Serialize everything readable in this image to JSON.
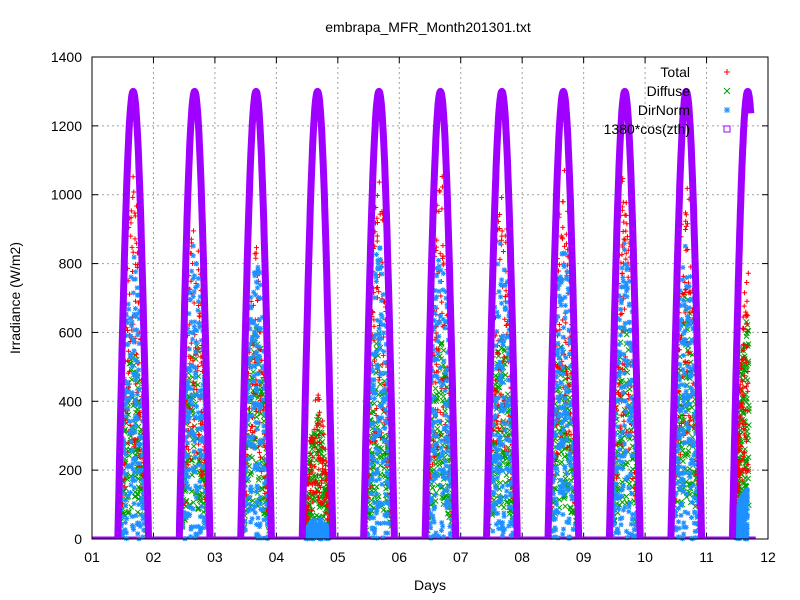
{
  "chart_data": {
    "type": "line",
    "title": "embrapa_MFR_Month201301.txt",
    "xlabel": "Days",
    "ylabel": "Irradiance (W/m2)",
    "xlim": [
      1,
      12
    ],
    "ylim": [
      0,
      1400
    ],
    "x_ticks": [
      "01",
      "02",
      "03",
      "04",
      "05",
      "06",
      "07",
      "08",
      "09",
      "10",
      "11",
      "12"
    ],
    "y_ticks": [
      "0",
      "200",
      "400",
      "600",
      "800",
      "1000",
      "1200",
      "1400"
    ],
    "grid": true,
    "legend_position": "top-right",
    "day_peaks": {
      "days": [
        1,
        2,
        3,
        4,
        5,
        6,
        7,
        8,
        9,
        10,
        11
      ],
      "total_max": [
        1060,
        1000,
        850,
        420,
        1080,
        1080,
        1070,
        1090,
        1100,
        1100,
        780
      ],
      "diffuse_max": [
        560,
        600,
        620,
        360,
        600,
        580,
        600,
        600,
        660,
        720,
        640
      ],
      "dirnorm_max": [
        850,
        860,
        820,
        60,
        850,
        850,
        890,
        850,
        860,
        860,
        150
      ]
    },
    "series": [
      {
        "name": "Total",
        "color": "#ff0000",
        "marker": "plus"
      },
      {
        "name": "Diffuse",
        "color": "#00a000",
        "marker": "cross"
      },
      {
        "name": "DirNorm",
        "color": "#1e90ff",
        "marker": "star"
      },
      {
        "name": "1380*cos(zth)",
        "color": "#a000ff",
        "marker": "square",
        "peak": 1300
      }
    ]
  }
}
